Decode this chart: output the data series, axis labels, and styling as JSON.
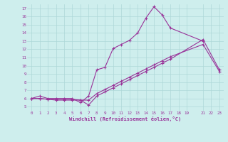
{
  "title": "",
  "xlabel": "Windchill (Refroidissement éolien,°C)",
  "bg_color": "#ceeeed",
  "grid_color": "#aed8d8",
  "line_color": "#993399",
  "xlim": [
    -0.5,
    23.5
  ],
  "ylim": [
    4.5,
    17.5
  ],
  "xticks": [
    0,
    1,
    2,
    3,
    4,
    5,
    6,
    7,
    8,
    9,
    10,
    11,
    12,
    13,
    14,
    15,
    16,
    17,
    18,
    19,
    21,
    22,
    23
  ],
  "yticks": [
    5,
    6,
    7,
    8,
    9,
    10,
    11,
    12,
    13,
    14,
    15,
    16,
    17
  ],
  "series": [
    {
      "x": [
        0,
        1,
        2,
        3,
        4,
        5,
        6,
        7,
        8,
        9,
        10,
        11,
        12,
        13,
        14,
        15,
        16,
        17,
        21
      ],
      "y": [
        6.0,
        6.3,
        6.0,
        6.0,
        6.0,
        6.0,
        5.5,
        6.3,
        9.5,
        9.8,
        12.1,
        12.6,
        13.1,
        14.0,
        15.8,
        17.2,
        16.2,
        14.6,
        13.0
      ]
    },
    {
      "x": [
        0,
        1,
        2,
        3,
        4,
        5,
        6,
        7,
        8,
        9,
        10,
        11,
        12,
        13,
        14,
        15,
        16,
        17,
        21,
        23
      ],
      "y": [
        6.0,
        6.0,
        5.9,
        5.8,
        5.8,
        5.8,
        5.8,
        5.2,
        6.3,
        6.8,
        7.3,
        7.8,
        8.3,
        8.8,
        9.3,
        9.8,
        10.3,
        10.8,
        13.2,
        9.5
      ]
    },
    {
      "x": [
        0,
        1,
        2,
        3,
        4,
        5,
        6,
        7,
        8,
        9,
        10,
        11,
        12,
        13,
        14,
        15,
        16,
        17,
        21,
        23
      ],
      "y": [
        6.0,
        6.0,
        5.9,
        5.9,
        5.9,
        5.9,
        5.8,
        5.8,
        6.6,
        7.1,
        7.6,
        8.1,
        8.6,
        9.1,
        9.6,
        10.1,
        10.6,
        11.1,
        12.6,
        9.3
      ]
    }
  ]
}
